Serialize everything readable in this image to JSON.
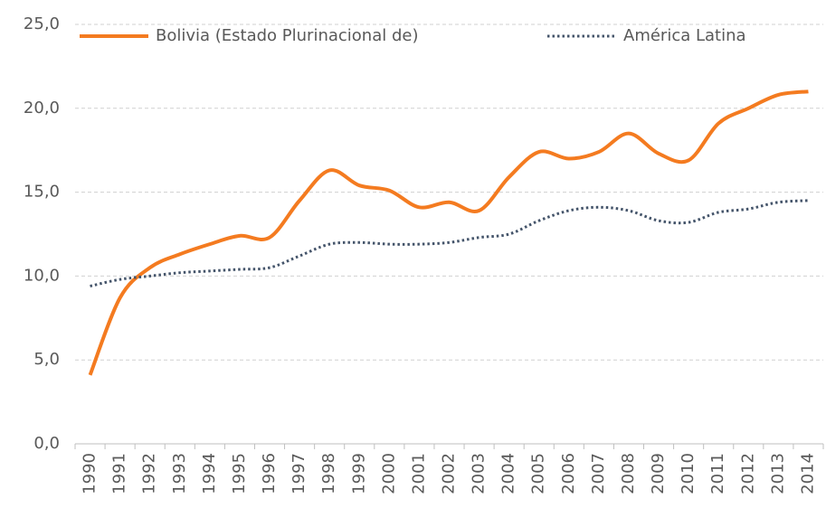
{
  "chart_data": {
    "type": "line",
    "categories": [
      "1990",
      "1991",
      "1992",
      "1993",
      "1994",
      "1995",
      "1996",
      "1997",
      "1998",
      "1999",
      "2000",
      "2001",
      "2002",
      "2003",
      "2004",
      "2005",
      "2006",
      "2007",
      "2008",
      "2009",
      "2010",
      "2011",
      "2012",
      "2013",
      "2014"
    ],
    "series": [
      {
        "name": "Bolivia (Estado Plurinacional de)",
        "color": "#f47b20",
        "style": "solid",
        "values": [
          4.1,
          8.7,
          10.5,
          11.3,
          11.9,
          12.4,
          12.3,
          14.5,
          16.3,
          15.4,
          15.1,
          14.1,
          14.4,
          13.9,
          15.9,
          17.4,
          17.0,
          17.4,
          18.5,
          17.3,
          16.9,
          19.1,
          20.0,
          20.8,
          21.0
        ]
      },
      {
        "name": "América Latina",
        "color": "#44546a",
        "style": "dotted",
        "values": [
          9.4,
          9.8,
          10.0,
          10.2,
          10.3,
          10.4,
          10.5,
          11.2,
          11.9,
          12.0,
          11.9,
          11.9,
          12.0,
          12.3,
          12.5,
          13.3,
          13.9,
          14.1,
          13.9,
          13.3,
          13.2,
          13.8,
          14.0,
          14.4,
          14.5
        ]
      }
    ],
    "ylim": [
      0,
      25
    ],
    "yticks": [
      {
        "value": 0,
        "label": "0,0"
      },
      {
        "value": 5,
        "label": "5,0"
      },
      {
        "value": 10,
        "label": "10,0"
      },
      {
        "value": 15,
        "label": "15,0"
      },
      {
        "value": 20,
        "label": "20,0"
      },
      {
        "value": 25,
        "label": "25,0"
      }
    ],
    "grid": true,
    "legend": "top"
  }
}
